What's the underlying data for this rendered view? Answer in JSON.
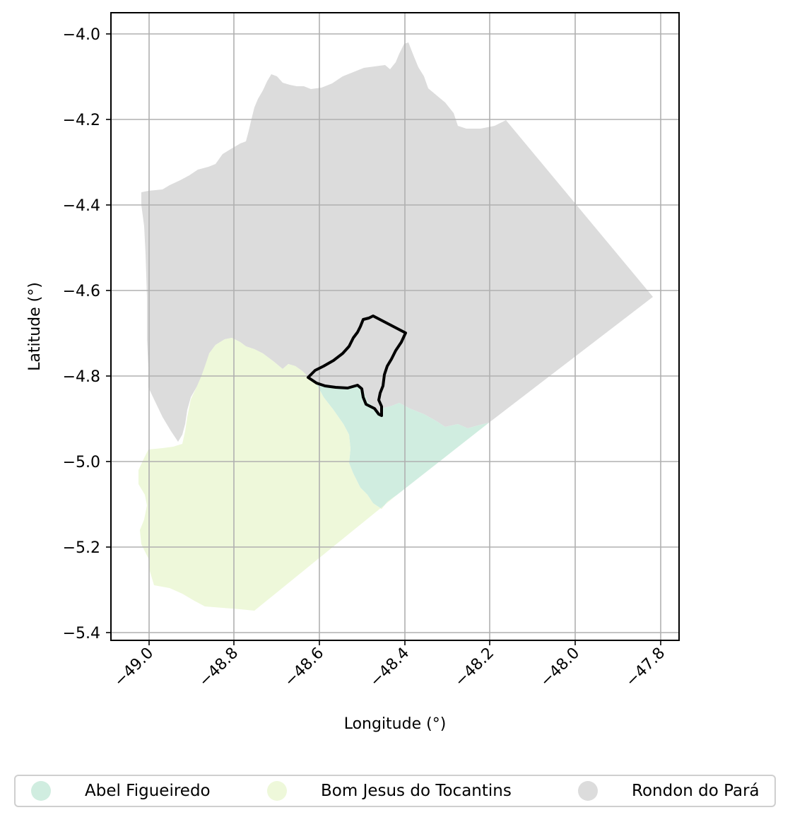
{
  "chart_data": {
    "type": "map",
    "xlabel": "Longitude (°)",
    "ylabel": "Latitude (°)",
    "xlim": [
      -49.09,
      -47.76
    ],
    "ylim": [
      -5.42,
      -3.95
    ],
    "x_ticks": [
      "−49.0",
      "−48.8",
      "−48.6",
      "−48.4",
      "−48.2",
      "−48.0",
      "−47.8"
    ],
    "y_ticks": [
      "−4.0",
      "−4.2",
      "−4.4",
      "−4.6",
      "−4.8",
      "−5.0",
      "−5.2",
      "−5.4"
    ],
    "grid": true,
    "regions": [
      {
        "name": "Abel Figueiredo",
        "color": "#d0ede0"
      },
      {
        "name": "Bom Jesus do Tocantins",
        "color": "#eef8da"
      },
      {
        "name": "Rondon do Pará",
        "color": "#dcdcdc"
      }
    ],
    "highlight_outline_color": "#000000",
    "legend_position": "bottom"
  },
  "legend": {
    "items": [
      {
        "label": "Abel Figueiredo",
        "color": "#d0ede0"
      },
      {
        "label": "Bom Jesus do Tocantins",
        "color": "#eef8da"
      },
      {
        "label": "Rondon do Pará",
        "color": "#dcdcdc"
      }
    ]
  }
}
